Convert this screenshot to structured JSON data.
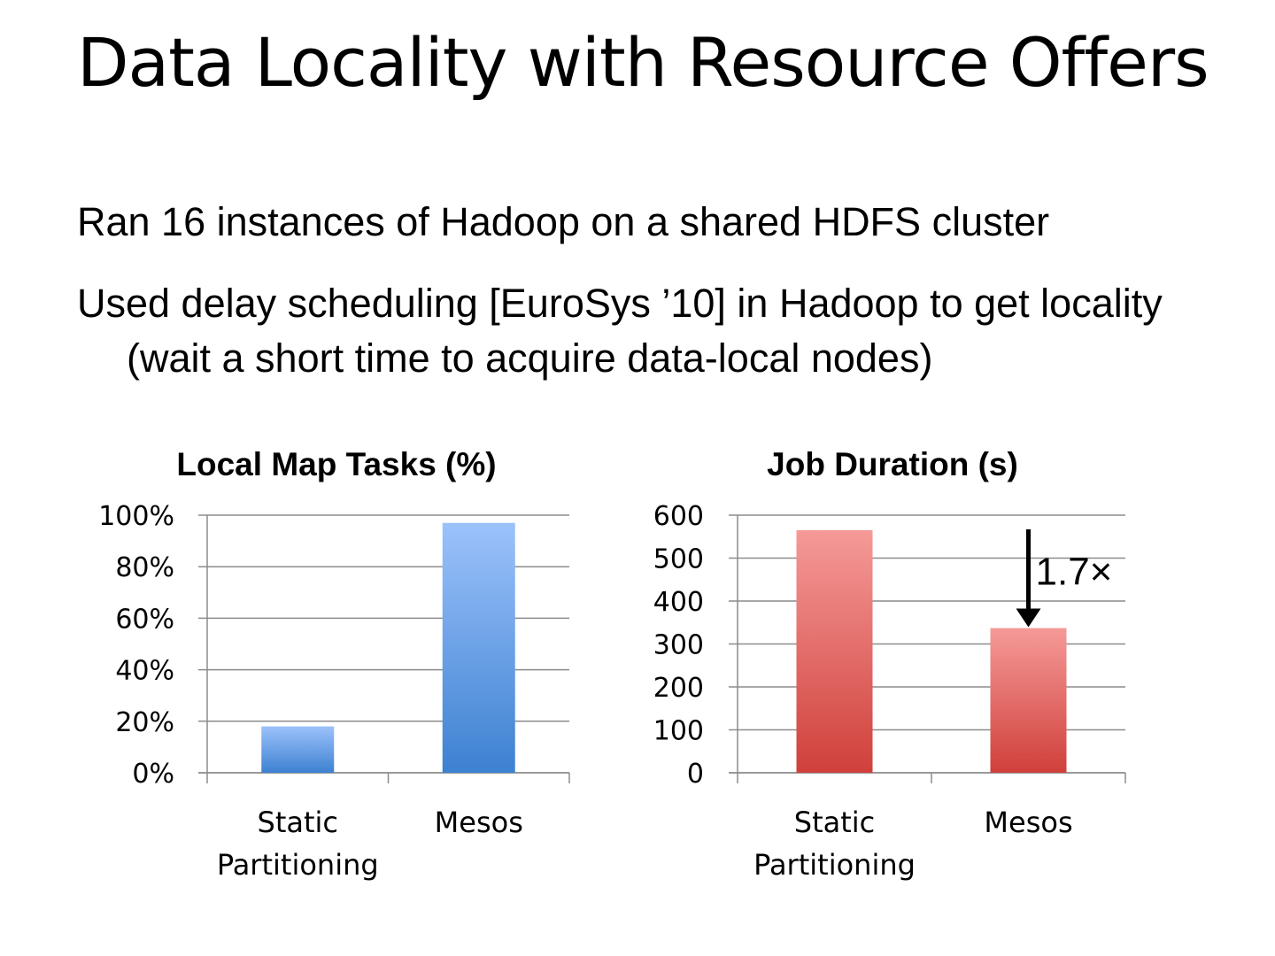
{
  "slide": {
    "title": "Data Locality with Resource Offers",
    "bullets": [
      "Ran 16 instances of Hadoop on a shared HDFS cluster",
      "Used delay scheduling [EuroSys ’10] in Hadoop to get locality (wait a short time to acquire data-local nodes)"
    ]
  },
  "chart_data": [
    {
      "type": "bar",
      "title": "Local Map Tasks (%)",
      "categories": [
        "Static Partitioning",
        "Mesos"
      ],
      "values": [
        18,
        97
      ],
      "ylim": [
        0,
        100
      ],
      "yticks": [
        0,
        20,
        40,
        60,
        80,
        100
      ],
      "ytick_labels": [
        "0%",
        "20%",
        "40%",
        "60%",
        "80%",
        "100%"
      ],
      "grid": true,
      "color_top": "#9cc2fb",
      "color_bottom": "#3d81d1"
    },
    {
      "type": "bar",
      "title": "Job Duration (s)",
      "categories": [
        "Static Partitioning",
        "Mesos"
      ],
      "values": [
        565,
        337
      ],
      "ylim": [
        0,
        600
      ],
      "yticks": [
        0,
        100,
        200,
        300,
        400,
        500,
        600
      ],
      "ytick_labels": [
        "0",
        "100",
        "200",
        "300",
        "400",
        "500",
        "600"
      ],
      "grid": true,
      "color_top": "#f59a98",
      "color_bottom": "#d0403b",
      "annotation": {
        "text": "1.7×",
        "type": "down-arrow",
        "category": "Mesos"
      }
    }
  ]
}
